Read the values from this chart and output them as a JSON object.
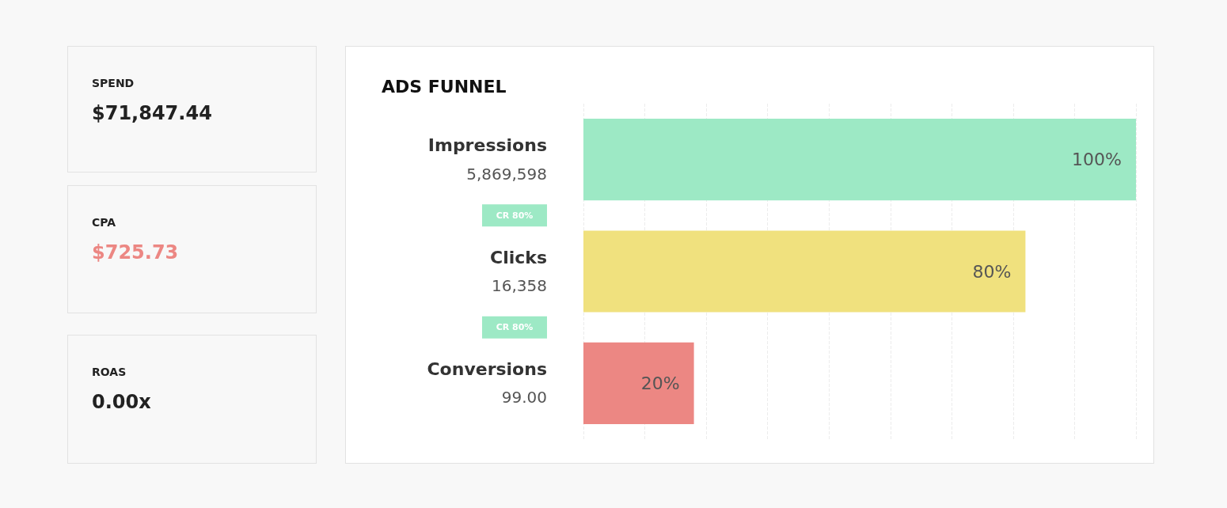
{
  "chart_data": [
    {
      "type": "other",
      "title": "SPEND",
      "annotations": [
        "$71,847.44"
      ]
    },
    {
      "type": "other",
      "title": "CPA",
      "annotations": [
        "$725.73"
      ],
      "color": "#ec8783"
    },
    {
      "type": "other",
      "title": "ROAS",
      "annotations": [
        "0.00x"
      ]
    },
    {
      "type": "bar",
      "title": "ADS FUNNEL",
      "orientation": "horizontal",
      "tick_labels": "y",
      "grid": "x",
      "categories": [
        "Impressions",
        "Clicks",
        "Conversions"
      ],
      "values": [
        100,
        80,
        20
      ],
      "value_labels": [
        "100%",
        "80%",
        "20%"
      ],
      "colors": [
        "#9de9c5",
        "#f0e17e",
        "#ec8783"
      ],
      "annotations": [
        "5,869,598",
        "16,358",
        "99.00",
        "CR 80%",
        "CR 80%"
      ]
    }
  ]
}
